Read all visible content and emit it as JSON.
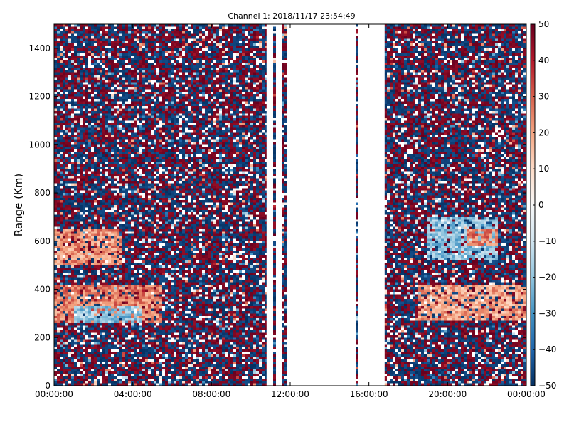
{
  "chart_data": {
    "type": "heatmap",
    "title": "Channel 1: 2018/11/17 23:54:49",
    "ylabel": "Range (Km)",
    "xlabel": "",
    "x_ticks": [
      "00:00:00",
      "04:00:00",
      "08:00:00",
      "12:00:00",
      "16:00:00",
      "20:00:00",
      "00:00:00"
    ],
    "xlim_hours": [
      0,
      24
    ],
    "y_ticks": [
      0,
      200,
      400,
      600,
      800,
      1000,
      1200,
      1400
    ],
    "ylim": [
      0,
      1500
    ],
    "colorbar": {
      "ticks": [
        50,
        40,
        30,
        20,
        10,
        0,
        -10,
        -20,
        -30,
        -40,
        -50
      ],
      "range": [
        -50,
        50
      ],
      "colormap": "RdBu_r",
      "colors": {
        "low": "#053061",
        "mid": "#f7f7f7",
        "high": "#67001f"
      }
    },
    "data_gaps_hours": [
      [
        10.8,
        11.1
      ],
      [
        11.3,
        11.6
      ],
      [
        11.9,
        15.3
      ],
      [
        15.5,
        16.8
      ]
    ],
    "features": [
      {
        "t_start": 0.0,
        "t_end": 5.5,
        "range_low": 260,
        "range_high": 420,
        "value": 25
      },
      {
        "t_start": 0.0,
        "t_end": 3.5,
        "range_low": 500,
        "range_high": 650,
        "value": 22
      },
      {
        "t_start": 1.0,
        "t_end": 4.5,
        "range_low": 260,
        "range_high": 330,
        "value": -20
      },
      {
        "t_start": 18.5,
        "t_end": 24.0,
        "range_low": 270,
        "range_high": 420,
        "value": 20
      },
      {
        "t_start": 19.0,
        "t_end": 22.5,
        "range_low": 520,
        "range_high": 700,
        "value": -20
      },
      {
        "t_start": 21.0,
        "t_end": 22.5,
        "range_low": 580,
        "range_high": 650,
        "value": 25
      }
    ]
  }
}
